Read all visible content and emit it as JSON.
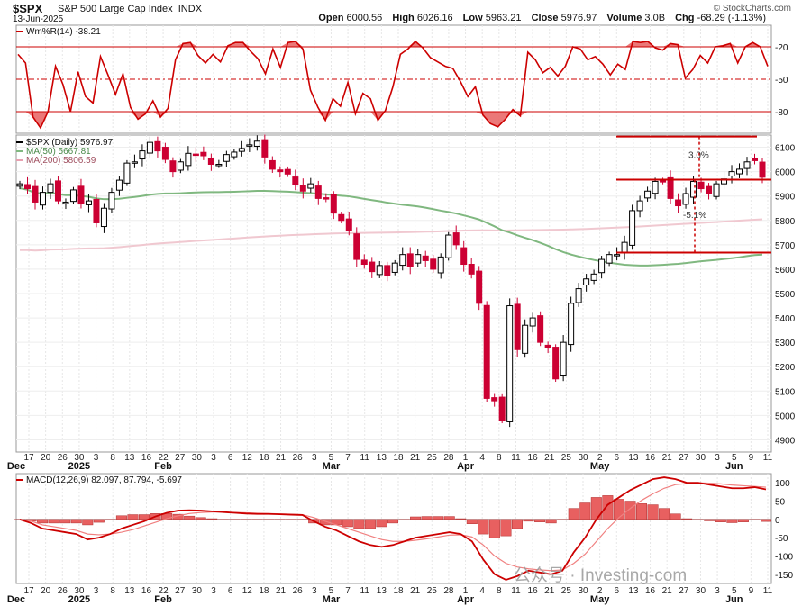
{
  "header": {
    "symbol": "$SPX",
    "name": "S&P 500 Large Cap Index",
    "exchange": "INDX",
    "date": "13-Jun-2025",
    "brand": "© StockCharts.com",
    "open_label": "Open",
    "open": "6000.56",
    "high_label": "High",
    "high": "6026.16",
    "low_label": "Low",
    "low": "5963.21",
    "close_label": "Close",
    "close": "5976.97",
    "volume_label": "Volume",
    "volume": "3.0B",
    "chg_label": "Chg",
    "chg": "-68.29 (-1.13%)"
  },
  "legends": {
    "wm": "Wm%R(14) -38.21",
    "spx": "$SPX (Daily) 5976.97",
    "ma50": "MA(50) 5667.81",
    "ma200": "MA(200) 5806.59",
    "macd": "MACD(12,26,9) 82.097, 87.794, -5.697"
  },
  "watermark": "公众号 · Investing-com",
  "colors": {
    "up": "#ffffff",
    "down": "#cc0033",
    "candle_edge": "#000000",
    "ma50": "#80b880",
    "ma200": "#f0c8d0",
    "indicator": "#cc0000",
    "fill": "#e86060",
    "annotation": "#cc0000"
  },
  "annotations": [
    {
      "text": "3.0%"
    },
    {
      "text": "-5.1%"
    }
  ],
  "chart_data": [
    {
      "type": "line",
      "name": "Williams %R",
      "y_ticks": [
        -20,
        -50,
        -80
      ],
      "ylim": [
        -100,
        0
      ],
      "levels": [
        -20,
        -50,
        -80
      ],
      "values": [
        -27,
        -35,
        -85,
        -95,
        -80,
        -38,
        -55,
        -80,
        -43,
        -66,
        -72,
        -29,
        -46,
        -64,
        -45,
        -76,
        -87,
        -82,
        -70,
        -85,
        -77,
        -32,
        -17,
        -16,
        -28,
        -35,
        -27,
        -34,
        -19,
        -16,
        -16,
        -24,
        -31,
        -45,
        -22,
        -39,
        -16,
        -15,
        -22,
        -60,
        -76,
        -88,
        -68,
        -75,
        -53,
        -82,
        -63,
        -68,
        -88,
        -79,
        -57,
        -27,
        -22,
        -15,
        -21,
        -30,
        -34,
        -38,
        -40,
        -52,
        -66,
        -57,
        -83,
        -91,
        -94,
        -87,
        -78,
        -84,
        -25,
        -32,
        -44,
        -39,
        -47,
        -38,
        -20,
        -22,
        -32,
        -29,
        -36,
        -46,
        -36,
        -41,
        -15,
        -16,
        -15,
        -21,
        -23,
        -17,
        -18,
        -49,
        -41,
        -28,
        -35,
        -20,
        -19,
        -17,
        -35,
        -20,
        -16,
        -20,
        -38
      ]
    },
    {
      "type": "candlestick",
      "name": "$SPX (Daily)",
      "y_ticks": [
        4900,
        5000,
        5100,
        5200,
        5300,
        5400,
        5500,
        5600,
        5700,
        5800,
        5900,
        6000,
        6100
      ],
      "ylim": [
        4850,
        6150
      ],
      "x_tick_labels": [
        "17",
        "20",
        "26",
        "30",
        "3",
        "8",
        "13",
        "16",
        "22",
        "27",
        "30",
        "3",
        "6",
        "12",
        "18",
        "21",
        "26",
        "3",
        "5",
        "7",
        "11",
        "13",
        "18",
        "21",
        "25",
        "28",
        "1",
        "4",
        "8",
        "11",
        "16",
        "21",
        "25",
        "30",
        "2",
        "6",
        "13",
        "16",
        "21",
        "27",
        "30",
        "3",
        "5",
        "9",
        "11"
      ],
      "x_month_labels": [
        "Dec",
        "2025",
        "Feb",
        "Mar",
        "Apr",
        "May",
        "Jun"
      ],
      "levels": [
        6144,
        5967,
        5668
      ],
      "ma50": {
        "start": 5910,
        "end": 5667.81
      },
      "ma200": {
        "start": 5630,
        "end": 5806.59
      },
      "closes": [
        5950,
        5930,
        5875,
        5915,
        5950,
        5880,
        5875,
        5925,
        5870,
        5880,
        5790,
        5850,
        5915,
        5965,
        6035,
        6040,
        6085,
        6120,
        6085,
        6050,
        6000,
        6040,
        6075,
        6070,
        6065,
        6030,
        6030,
        6070,
        6080,
        6095,
        6110,
        6125,
        6060,
        6010,
        6000,
        5990,
        5945,
        5920,
        5950,
        5890,
        5890,
        5830,
        5800,
        5760,
        5640,
        5620,
        5590,
        5615,
        5575,
        5625,
        5660,
        5610,
        5660,
        5635,
        5600,
        5650,
        5740,
        5700,
        5620,
        5580,
        5460,
        5070,
        5060,
        4980,
        5450,
        5270,
        5370,
        5400,
        5300,
        5280,
        5150,
        5300,
        5460,
        5520,
        5560,
        5580,
        5640,
        5660,
        5660,
        5710,
        5840,
        5880,
        5920,
        5960,
        5960,
        5890,
        5860,
        5910,
        5960,
        5930,
        5910,
        5950,
        5970,
        6000,
        6010,
        6040,
        6045,
        5977
      ]
    },
    {
      "type": "line",
      "name": "MACD",
      "y_ticks": [
        100,
        50,
        0,
        -50,
        -100,
        -150
      ],
      "ylim": [
        -175,
        125
      ],
      "series": [
        {
          "name": "MACD",
          "values": [
            0,
            -10,
            -25,
            -30,
            -35,
            -40,
            -55,
            -50,
            -40,
            -25,
            -15,
            -5,
            8,
            18,
            24,
            25,
            24,
            22,
            20,
            18,
            16,
            15,
            15,
            14,
            13,
            12,
            -5,
            -20,
            -30,
            -45,
            -60,
            -70,
            -75,
            -70,
            -60,
            -50,
            -45,
            -40,
            -35,
            -40,
            -60,
            -110,
            -150,
            -165,
            -155,
            -140,
            -145,
            -150,
            -140,
            -90,
            -50,
            0,
            40,
            60,
            80,
            95,
            110,
            115,
            110,
            100,
            100,
            95,
            90,
            85,
            85,
            88,
            82
          ]
        },
        {
          "name": "Signal",
          "values": [
            0,
            -5,
            -15,
            -20,
            -25,
            -30,
            -40,
            -42,
            -40,
            -35,
            -28,
            -18,
            -8,
            2,
            10,
            16,
            19,
            20,
            20,
            19,
            18,
            17,
            16,
            15,
            14,
            13,
            5,
            -5,
            -15,
            -25,
            -35,
            -45,
            -55,
            -60,
            -60,
            -57,
            -53,
            -48,
            -43,
            -42,
            -48,
            -70,
            -100,
            -120,
            -130,
            -135,
            -138,
            -140,
            -138,
            -120,
            -95,
            -60,
            -25,
            5,
            30,
            52,
            70,
            85,
            95,
            98,
            100,
            99,
            97,
            94,
            92,
            90,
            88
          ]
        },
        {
          "name": "Histogram",
          "values": [
            0,
            -5,
            -10,
            -10,
            -10,
            -10,
            -15,
            -8,
            0,
            10,
            13,
            13,
            16,
            16,
            14,
            9,
            5,
            2,
            0,
            -1,
            -2,
            -2,
            -1,
            -1,
            -1,
            -1,
            -10,
            -15,
            -15,
            -20,
            -25,
            -25,
            -20,
            -10,
            0,
            7,
            8,
            8,
            8,
            2,
            -12,
            -40,
            -50,
            -45,
            -25,
            -5,
            -7,
            -10,
            -2,
            30,
            45,
            60,
            65,
            55,
            50,
            43,
            40,
            30,
            15,
            2,
            0,
            -4,
            -7,
            -9,
            -7,
            -2,
            -5.7
          ]
        }
      ]
    }
  ]
}
